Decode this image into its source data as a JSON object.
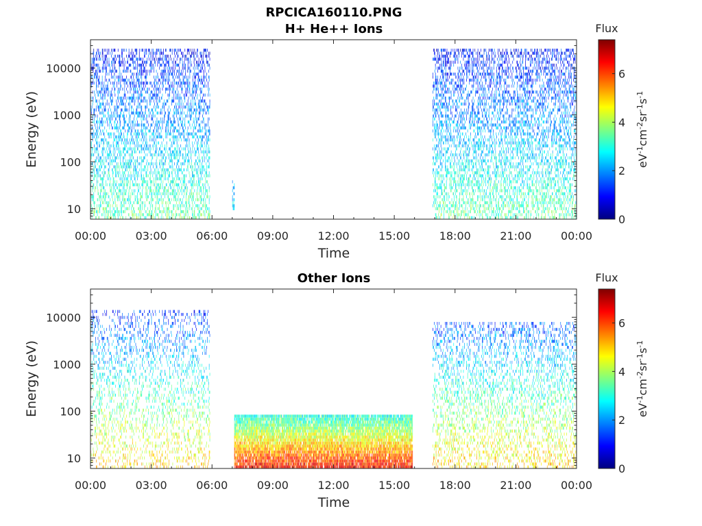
{
  "figure_title": "RPCICA160110.PNG",
  "chart_data": [
    {
      "type": "heatmap",
      "title": "H+ He++ Ions",
      "xlabel": "Time",
      "ylabel": "Energy (eV)",
      "x_ticks": [
        "00:00",
        "03:00",
        "06:00",
        "09:00",
        "12:00",
        "15:00",
        "18:00",
        "21:00",
        "00:00"
      ],
      "xlim_hours": [
        0,
        24
      ],
      "y_ticks": [
        {
          "label": "10",
          "value": 10
        },
        {
          "label": "100",
          "value": 100
        },
        {
          "label": "1000",
          "value": 1000
        },
        {
          "label": "10000",
          "value": 10000
        }
      ],
      "ylim": [
        6,
        40000
      ],
      "y_scale": "log",
      "colorbar": {
        "title": "Flux",
        "label": "eV-1cm-2sr-1s-1",
        "ticks": [
          "0",
          "2",
          "4",
          "6"
        ],
        "range": [
          0,
          7.4
        ],
        "colormap": "jet"
      },
      "activity": [
        {
          "t_start": 0.0,
          "t_end": 5.9,
          "e_min": 6,
          "e_max": 25000,
          "flux_low_energy": 3.5,
          "flux_high_energy": 1.0,
          "density": 0.35
        },
        {
          "t_start": 7.0,
          "t_end": 7.1,
          "e_min": 10,
          "e_max": 40,
          "flux_low_energy": 2.5,
          "flux_high_energy": 2.0,
          "density": 0.6
        },
        {
          "t_start": 16.9,
          "t_end": 24.0,
          "e_min": 6,
          "e_max": 25000,
          "flux_low_energy": 3.5,
          "flux_high_energy": 1.0,
          "density": 0.35
        }
      ]
    },
    {
      "type": "heatmap",
      "title": "Other Ions",
      "xlabel": "Time",
      "ylabel": "Energy (eV)",
      "x_ticks": [
        "00:00",
        "03:00",
        "06:00",
        "09:00",
        "12:00",
        "15:00",
        "18:00",
        "21:00",
        "00:00"
      ],
      "xlim_hours": [
        0,
        24
      ],
      "y_ticks": [
        {
          "label": "10",
          "value": 10
        },
        {
          "label": "100",
          "value": 100
        },
        {
          "label": "1000",
          "value": 1000
        },
        {
          "label": "10000",
          "value": 10000
        }
      ],
      "ylim": [
        6,
        40000
      ],
      "y_scale": "log",
      "colorbar": {
        "title": "Flux",
        "label": "eV-1cm-2sr-1s-1",
        "ticks": [
          "0",
          "2",
          "4",
          "6"
        ],
        "range": [
          0,
          7.4
        ],
        "colormap": "jet"
      },
      "activity": [
        {
          "t_start": 0.0,
          "t_end": 5.9,
          "e_min": 6,
          "e_max": 15000,
          "flux_low_energy": 5.0,
          "flux_high_energy": 1.2,
          "density": 0.2
        },
        {
          "t_start": 7.1,
          "t_end": 15.9,
          "e_min": 6,
          "e_max": 80,
          "flux_low_energy": 6.5,
          "flux_high_energy": 3.0,
          "density": 0.9
        },
        {
          "t_start": 16.9,
          "t_end": 24.0,
          "e_min": 6,
          "e_max": 8000,
          "flux_low_energy": 5.0,
          "flux_high_energy": 1.5,
          "density": 0.25
        }
      ]
    }
  ]
}
